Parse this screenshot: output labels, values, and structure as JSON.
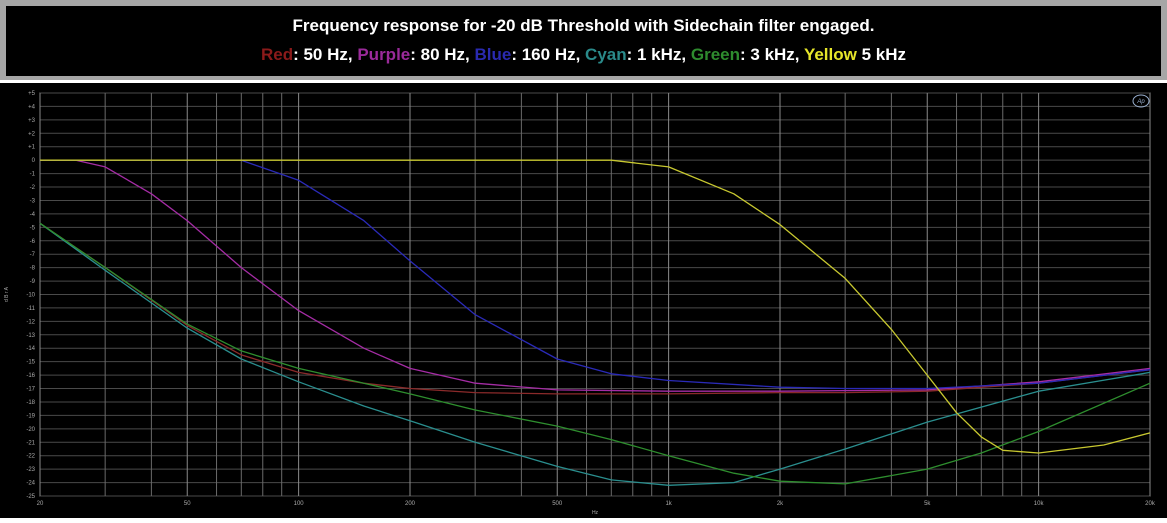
{
  "header": {
    "title": "Frequency response for -20 dB Threshold with Sidechain filter engaged.",
    "legend": [
      {
        "name": "Red",
        "color": "#8b1a1a",
        "value": ": 50 Hz, "
      },
      {
        "name": "Purple",
        "color": "#9a2a9a",
        "value": ": 80 Hz, "
      },
      {
        "name": "Blue",
        "color": "#2a2ab0",
        "value": ": 160 Hz, "
      },
      {
        "name": "Cyan",
        "color": "#2a8a8a",
        "value": ": 1 kHz, "
      },
      {
        "name": "Green",
        "color": "#2e8b2e",
        "value": ": 3 kHz, "
      },
      {
        "name": "Yellow",
        "color": "#e6e62a",
        "value": " 5 kHz"
      }
    ]
  },
  "chart_data": {
    "type": "line",
    "xscale": "log",
    "xlim": [
      20,
      20000
    ],
    "ylim": [
      -25,
      5
    ],
    "xlabel": "Hz",
    "ylabel": "d B r A",
    "logo": "Ap",
    "grid": true,
    "x_ticks": [
      {
        "value": 20,
        "label": "20"
      },
      {
        "value": 50,
        "label": "50"
      },
      {
        "value": 100,
        "label": "100"
      },
      {
        "value": 200,
        "label": "200"
      },
      {
        "value": 500,
        "label": "500"
      },
      {
        "value": 1000,
        "label": "1k"
      },
      {
        "value": 2000,
        "label": "2k"
      },
      {
        "value": 5000,
        "label": "5k"
      },
      {
        "value": 10000,
        "label": "10k"
      },
      {
        "value": 20000,
        "label": "20k"
      }
    ],
    "y_ticks": [
      {
        "value": 5,
        "label": "+5"
      },
      {
        "value": 4,
        "label": "+4"
      },
      {
        "value": 3,
        "label": "+3"
      },
      {
        "value": 2,
        "label": "+2"
      },
      {
        "value": 1,
        "label": "+1"
      },
      {
        "value": 0,
        "label": "0"
      },
      {
        "value": -1,
        "label": "-1"
      },
      {
        "value": -2,
        "label": "-2"
      },
      {
        "value": -3,
        "label": "-3"
      },
      {
        "value": -4,
        "label": "-4"
      },
      {
        "value": -5,
        "label": "-5"
      },
      {
        "value": -6,
        "label": "-6"
      },
      {
        "value": -7,
        "label": "-7"
      },
      {
        "value": -8,
        "label": "-8"
      },
      {
        "value": -9,
        "label": "-9"
      },
      {
        "value": -10,
        "label": "-10"
      },
      {
        "value": -11,
        "label": "-11"
      },
      {
        "value": -12,
        "label": "-12"
      },
      {
        "value": -13,
        "label": "-13"
      },
      {
        "value": -14,
        "label": "-14"
      },
      {
        "value": -15,
        "label": "-15"
      },
      {
        "value": -16,
        "label": "-16"
      },
      {
        "value": -17,
        "label": "-17"
      },
      {
        "value": -18,
        "label": "-18"
      },
      {
        "value": -19,
        "label": "-19"
      },
      {
        "value": -20,
        "label": "-20"
      },
      {
        "value": -21,
        "label": "-21"
      },
      {
        "value": -22,
        "label": "-22"
      },
      {
        "value": -23,
        "label": "-23"
      },
      {
        "value": -24,
        "label": "-24"
      },
      {
        "value": -25,
        "label": "-25"
      }
    ],
    "series": [
      {
        "name": "Red",
        "color": "#8b2a2a",
        "points": [
          [
            20,
            -4.7
          ],
          [
            30,
            -8
          ],
          [
            50,
            -12.3
          ],
          [
            70,
            -14.5
          ],
          [
            100,
            -15.8
          ],
          [
            150,
            -16.6
          ],
          [
            200,
            -17
          ],
          [
            300,
            -17.3
          ],
          [
            500,
            -17.4
          ],
          [
            1000,
            -17.4
          ],
          [
            2000,
            -17.3
          ],
          [
            3000,
            -17.3
          ],
          [
            5000,
            -17.2
          ],
          [
            10000,
            -16.6
          ],
          [
            20000,
            -15.6
          ]
        ]
      },
      {
        "name": "Purple",
        "color": "#a52ca5",
        "points": [
          [
            20,
            0
          ],
          [
            25,
            0
          ],
          [
            30,
            -0.5
          ],
          [
            40,
            -2.5
          ],
          [
            50,
            -4.5
          ],
          [
            70,
            -8
          ],
          [
            100,
            -11.2
          ],
          [
            150,
            -14
          ],
          [
            200,
            -15.5
          ],
          [
            300,
            -16.6
          ],
          [
            500,
            -17.1
          ],
          [
            1000,
            -17.2
          ],
          [
            2000,
            -17.2
          ],
          [
            5000,
            -17.1
          ],
          [
            10000,
            -16.5
          ],
          [
            20000,
            -15.5
          ]
        ]
      },
      {
        "name": "Blue",
        "color": "#2a2ab8",
        "points": [
          [
            20,
            0
          ],
          [
            70,
            0
          ],
          [
            100,
            -1.5
          ],
          [
            150,
            -4.5
          ],
          [
            200,
            -7.5
          ],
          [
            300,
            -11.5
          ],
          [
            500,
            -14.8
          ],
          [
            700,
            -15.9
          ],
          [
            1000,
            -16.4
          ],
          [
            2000,
            -16.9
          ],
          [
            3000,
            -17
          ],
          [
            5000,
            -17
          ],
          [
            10000,
            -16.6
          ],
          [
            20000,
            -15.6
          ]
        ]
      },
      {
        "name": "Cyan",
        "color": "#2a8e8e",
        "points": [
          [
            20,
            -4.7
          ],
          [
            30,
            -8.2
          ],
          [
            50,
            -12.5
          ],
          [
            70,
            -14.8
          ],
          [
            100,
            -16.5
          ],
          [
            150,
            -18.3
          ],
          [
            200,
            -19.4
          ],
          [
            300,
            -21
          ],
          [
            500,
            -22.8
          ],
          [
            700,
            -23.8
          ],
          [
            1000,
            -24.2
          ],
          [
            1500,
            -24
          ],
          [
            2000,
            -23
          ],
          [
            3000,
            -21.5
          ],
          [
            5000,
            -19.5
          ],
          [
            10000,
            -17.2
          ],
          [
            20000,
            -15.8
          ]
        ]
      },
      {
        "name": "Green",
        "color": "#2e8e2e",
        "points": [
          [
            20,
            -4.7
          ],
          [
            30,
            -8
          ],
          [
            50,
            -12.2
          ],
          [
            70,
            -14.2
          ],
          [
            100,
            -15.5
          ],
          [
            150,
            -16.6
          ],
          [
            200,
            -17.4
          ],
          [
            300,
            -18.6
          ],
          [
            500,
            -19.8
          ],
          [
            700,
            -20.8
          ],
          [
            1000,
            -22
          ],
          [
            1500,
            -23.3
          ],
          [
            2000,
            -23.9
          ],
          [
            3000,
            -24.1
          ],
          [
            5000,
            -23
          ],
          [
            7000,
            -21.8
          ],
          [
            10000,
            -20.2
          ],
          [
            20000,
            -16.6
          ]
        ]
      },
      {
        "name": "Yellow",
        "color": "#c8c830",
        "points": [
          [
            20,
            0
          ],
          [
            700,
            0
          ],
          [
            1000,
            -0.5
          ],
          [
            1500,
            -2.5
          ],
          [
            2000,
            -4.8
          ],
          [
            3000,
            -8.8
          ],
          [
            4000,
            -12.6
          ],
          [
            5000,
            -16
          ],
          [
            6000,
            -18.8
          ],
          [
            7000,
            -20.6
          ],
          [
            8000,
            -21.6
          ],
          [
            10000,
            -21.8
          ],
          [
            15000,
            -21.2
          ],
          [
            20000,
            -20.3
          ]
        ]
      }
    ]
  }
}
